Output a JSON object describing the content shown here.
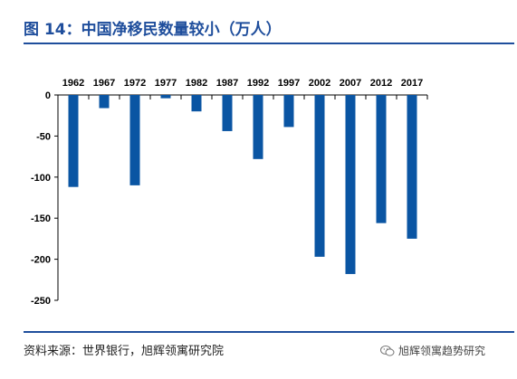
{
  "header": {
    "title": "图 14：中国净移民数量较小（万人）"
  },
  "footer": {
    "source": "资料来源：世界银行，旭辉领寓研究院",
    "watermark": "旭辉领寓趋势研究"
  },
  "icons": {
    "watermark_icon": "wechat-icon"
  },
  "colors": {
    "bar": "#0a55a3",
    "accent": "#1f4e9c"
  },
  "chart_data": {
    "type": "bar",
    "categories": [
      "1962",
      "1967",
      "1972",
      "1977",
      "1982",
      "1987",
      "1992",
      "1997",
      "2002",
      "2007",
      "2012",
      "2017"
    ],
    "values": [
      -112,
      -16,
      -110,
      -4,
      -20,
      -44,
      -78,
      -39,
      -197,
      -218,
      -156,
      -175
    ],
    "title": "中国净移民数量较小（万人）",
    "xlabel": "",
    "ylabel": "",
    "ylim": [
      -250,
      0
    ],
    "yticks": [
      0,
      -50,
      -100,
      -150,
      -200,
      -250
    ],
    "x_axis_position": "top",
    "grid": false
  }
}
